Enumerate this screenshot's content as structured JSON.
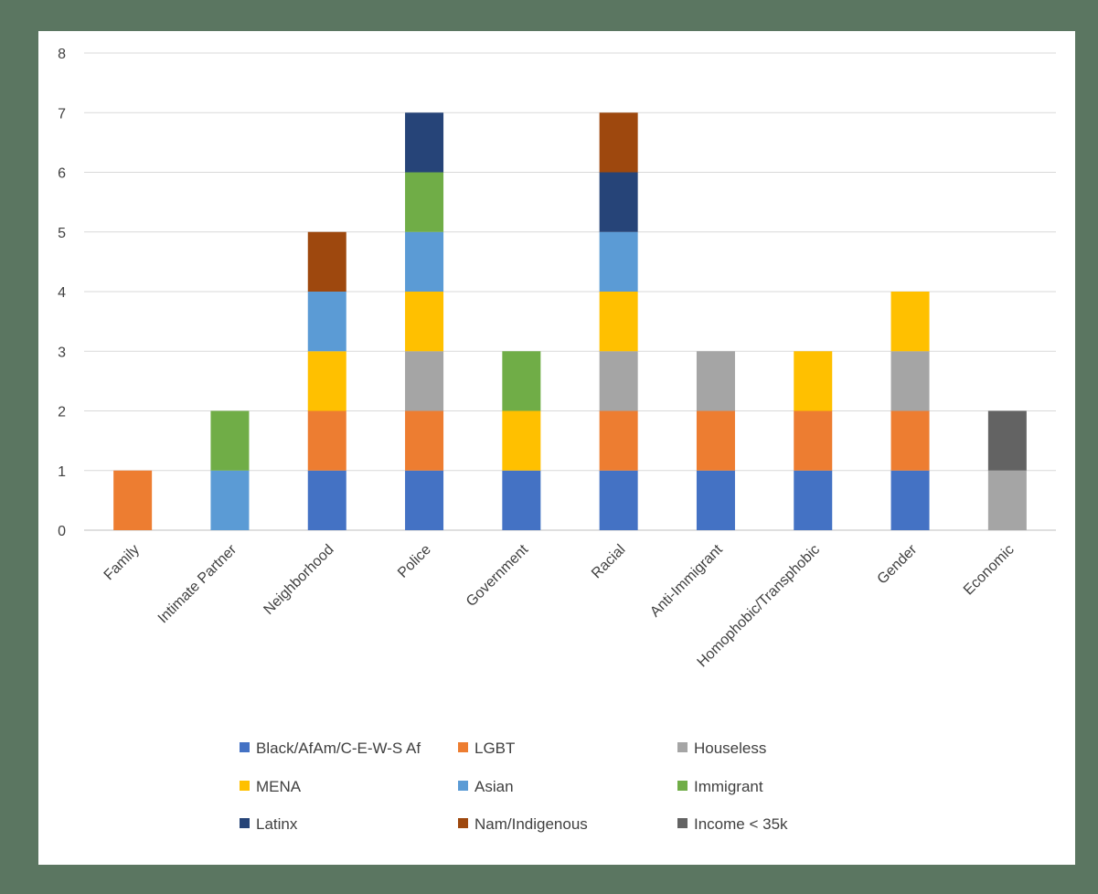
{
  "chart_data": {
    "type": "bar",
    "stacked": true,
    "categories": [
      "Family",
      "Intimate Partner",
      "Neighborhood",
      "Police",
      "Government",
      "Racial",
      "Anti-Immigrant",
      "Homophobic/Transphobic",
      "Gender",
      "Economic"
    ],
    "series": [
      {
        "name": "Black/AfAm/C-E-W-S Af",
        "color": "#4472c4",
        "values": [
          0,
          0,
          1,
          1,
          1,
          1,
          1,
          1,
          1,
          0
        ]
      },
      {
        "name": "LGBT",
        "color": "#ed7d31",
        "values": [
          1,
          0,
          1,
          1,
          0,
          1,
          1,
          1,
          1,
          0
        ]
      },
      {
        "name": "Houseless",
        "color": "#a5a5a5",
        "values": [
          0,
          0,
          0,
          1,
          0,
          1,
          1,
          0,
          1,
          1
        ]
      },
      {
        "name": "MENA",
        "color": "#ffc000",
        "values": [
          0,
          0,
          1,
          1,
          1,
          1,
          0,
          1,
          1,
          0
        ]
      },
      {
        "name": "Asian",
        "color": "#5b9bd5",
        "values": [
          0,
          1,
          1,
          1,
          0,
          1,
          0,
          0,
          0,
          0
        ]
      },
      {
        "name": "Immigrant",
        "color": "#70ad47",
        "values": [
          0,
          1,
          0,
          1,
          1,
          0,
          0,
          0,
          0,
          0
        ]
      },
      {
        "name": "Latinx",
        "color": "#264478",
        "values": [
          0,
          0,
          0,
          1,
          0,
          1,
          0,
          0,
          0,
          0
        ]
      },
      {
        "name": "Nam/Indigenous",
        "color": "#9e480e",
        "values": [
          0,
          0,
          1,
          0,
          0,
          1,
          0,
          0,
          0,
          0
        ]
      },
      {
        "name": "Income < 35k",
        "color": "#636363",
        "values": [
          0,
          0,
          0,
          0,
          0,
          0,
          0,
          0,
          0,
          1
        ]
      }
    ],
    "yticks": [
      "0",
      "1",
      "2",
      "3",
      "4",
      "5",
      "6",
      "7",
      "8"
    ],
    "ylim": [
      0,
      8
    ],
    "grid": true,
    "legend_position": "bottom",
    "title": "",
    "xlabel": "",
    "ylabel": ""
  }
}
